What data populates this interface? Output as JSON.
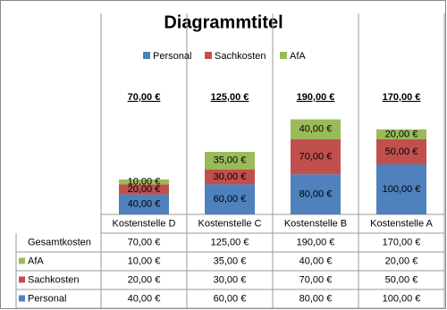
{
  "chart_data": {
    "type": "stacked-bar",
    "title": "Diagrammtitel",
    "categories": [
      "Kostenstelle D",
      "Kostenstelle C",
      "Kostenstelle B",
      "Kostenstelle A"
    ],
    "series": [
      {
        "name": "Personal",
        "color": "#4f81bd",
        "values": [
          40,
          60,
          80,
          100
        ],
        "value_labels": [
          "40,00 €",
          "60,00 €",
          "80,00 €",
          "100,00 €"
        ]
      },
      {
        "name": "Sachkosten",
        "color": "#c0504d",
        "values": [
          20,
          30,
          70,
          50
        ],
        "value_labels": [
          "20,00 €",
          "30,00 €",
          "70,00 €",
          "50,00 €"
        ]
      },
      {
        "name": "AfA",
        "color": "#9bbb59",
        "values": [
          10,
          35,
          40,
          20
        ],
        "value_labels": [
          "10,00 €",
          "35,00 €",
          "40,00 €",
          "20,00 €"
        ]
      }
    ],
    "totals": {
      "name": "Gesamtkosten",
      "values": [
        70,
        125,
        190,
        170
      ],
      "value_labels": [
        "70,00 €",
        "125,00 €",
        "190,00 €",
        "170,00 €"
      ]
    },
    "ylim": [
      0,
      250
    ]
  }
}
